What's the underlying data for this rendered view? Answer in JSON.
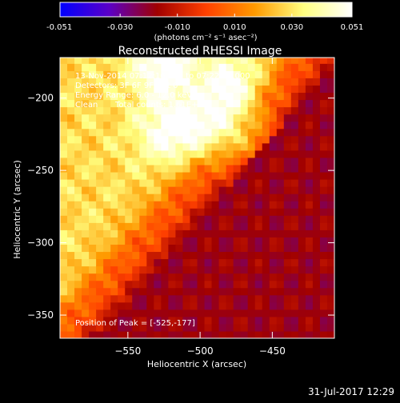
{
  "chart_data": {
    "type": "heatmap",
    "title": "Reconstructed RHESSI Image",
    "xlabel": "Heliocentric X (arcsec)",
    "ylabel": "Heliocentric Y (arcsec)",
    "colorbar": {
      "ticks": [
        "-0.051",
        "-0.030",
        "-0.010",
        "0.010",
        "0.030",
        "0.051"
      ],
      "tick_values": [
        -0.051,
        -0.03,
        -0.01,
        0.01,
        0.03,
        0.051
      ],
      "range": [
        -0.051,
        0.051
      ],
      "unit_label": "(photons cm⁻² s⁻¹ asec⁻²)",
      "colors": [
        "#0000ff",
        "#5a00c8",
        "#a00000",
        "#ff4000",
        "#ff9a00",
        "#ffff80",
        "#ffffff"
      ]
    },
    "xlim": [
      -597,
      -407
    ],
    "ylim": [
      -366,
      -172
    ],
    "xticks": [
      -550,
      -500,
      -450
    ],
    "xtick_labels": [
      "−550",
      "−500",
      "−450"
    ],
    "yticks": [
      -200,
      -250,
      -300,
      -350
    ],
    "ytick_labels": [
      "−200",
      "−250",
      "−300",
      "−350"
    ],
    "annotations": [
      "13-Nov-2014 07:12:16.000 to 07:22:16.000",
      "Detectors: 3F 6F 9F, Att 0",
      "Energy Range: 6.0 - 12.0 keV",
      "Clean",
      "Total counts: 1.61E+05"
    ],
    "peak_label": "Position of Peak = [-525,-177]",
    "peak": [
      -525,
      -177
    ],
    "sources": [
      {
        "x": -525,
        "y": -177,
        "value": 0.051
      },
      {
        "x": -520,
        "y": -222,
        "value": 0.045
      },
      {
        "x": -477,
        "y": -193,
        "value": 0.042
      },
      {
        "x": -485,
        "y": -222,
        "value": 0.04
      },
      {
        "x": -450,
        "y": -240,
        "value": 0.036
      }
    ],
    "negative_region": {
      "x": -545,
      "y": -340,
      "value": -0.022
    }
  },
  "footer": {
    "date": "31-Jul-2017 12:29"
  }
}
